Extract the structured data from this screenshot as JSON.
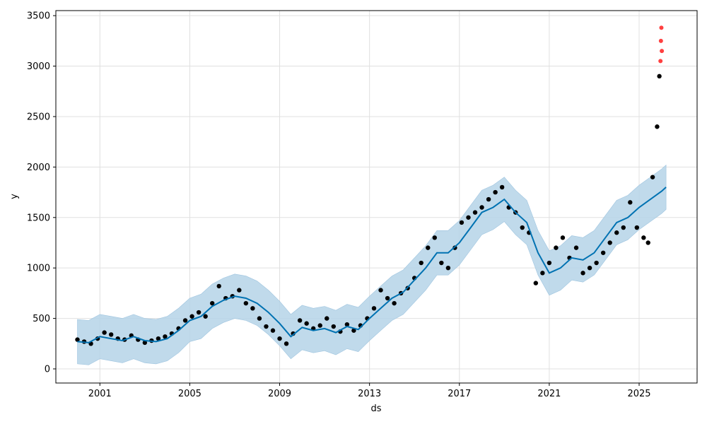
{
  "chart_data": {
    "type": "scatter",
    "xlabel": "ds",
    "ylabel": "y",
    "x_ticks": [
      "2001",
      "2005",
      "2009",
      "2013",
      "2017",
      "2021",
      "2025"
    ],
    "y_ticks": [
      "0",
      "500",
      "1000",
      "1500",
      "2000",
      "2500",
      "3000",
      "3500"
    ],
    "xlim": [
      1999.04,
      2027.58
    ],
    "ylim": [
      -140,
      3550
    ],
    "grid": true,
    "colors": {
      "observed": "#000000",
      "anomaly": "#ff0000",
      "forecast": "#0072b2",
      "uncertainty": "#b5d3e8"
    },
    "forecast": {
      "x": [
        2000.0,
        2000.5,
        2001.0,
        2001.5,
        2002.0,
        2002.5,
        2003.0,
        2003.5,
        2004.0,
        2004.5,
        2005.0,
        2005.5,
        2006.0,
        2006.5,
        2007.0,
        2007.5,
        2008.0,
        2008.5,
        2009.0,
        2009.5,
        2010.0,
        2010.5,
        2011.0,
        2011.5,
        2012.0,
        2012.5,
        2013.0,
        2013.5,
        2014.0,
        2014.5,
        2015.0,
        2015.5,
        2016.0,
        2016.5,
        2017.0,
        2017.5,
        2018.0,
        2018.5,
        2019.0,
        2019.5,
        2020.0,
        2020.5,
        2021.0,
        2021.5,
        2022.0,
        2022.5,
        2023.0,
        2023.5,
        2024.0,
        2024.5,
        2025.0,
        2025.5,
        2026.0,
        2026.2
      ],
      "yhat": [
        270,
        260,
        320,
        300,
        280,
        320,
        280,
        270,
        300,
        380,
        480,
        520,
        620,
        680,
        720,
        700,
        650,
        560,
        450,
        320,
        410,
        380,
        400,
        360,
        420,
        390,
        500,
        600,
        700,
        760,
        880,
        1000,
        1150,
        1150,
        1250,
        1400,
        1550,
        1600,
        1680,
        1550,
        1450,
        1150,
        950,
        1000,
        1100,
        1080,
        1150,
        1300,
        1450,
        1500,
        1600,
        1680,
        1760,
        1800
      ],
      "lower": [
        50,
        40,
        100,
        80,
        60,
        100,
        60,
        50,
        80,
        160,
        270,
        300,
        400,
        460,
        500,
        480,
        430,
        340,
        230,
        100,
        190,
        160,
        180,
        140,
        200,
        170,
        280,
        380,
        480,
        540,
        660,
        780,
        930,
        930,
        1030,
        1180,
        1330,
        1380,
        1460,
        1330,
        1230,
        930,
        730,
        780,
        880,
        860,
        930,
        1080,
        1230,
        1280,
        1380,
        1460,
        1540,
        1580
      ],
      "upper": [
        490,
        480,
        540,
        520,
        500,
        540,
        500,
        490,
        520,
        600,
        700,
        740,
        840,
        900,
        940,
        920,
        870,
        780,
        670,
        540,
        630,
        600,
        620,
        580,
        640,
        610,
        720,
        820,
        920,
        980,
        1100,
        1220,
        1370,
        1370,
        1470,
        1620,
        1770,
        1820,
        1900,
        1770,
        1670,
        1370,
        1170,
        1220,
        1320,
        1300,
        1370,
        1520,
        1670,
        1720,
        1820,
        1900,
        1980,
        2020
      ]
    },
    "observed": {
      "x": [
        2000.0,
        2000.3,
        2000.6,
        2000.9,
        2001.2,
        2001.5,
        2001.8,
        2002.1,
        2002.4,
        2002.7,
        2003.0,
        2003.3,
        2003.6,
        2003.9,
        2004.2,
        2004.5,
        2004.8,
        2005.1,
        2005.4,
        2005.7,
        2006.0,
        2006.3,
        2006.6,
        2006.9,
        2007.2,
        2007.5,
        2007.8,
        2008.1,
        2008.4,
        2008.7,
        2009.0,
        2009.3,
        2009.6,
        2009.9,
        2010.2,
        2010.5,
        2010.8,
        2011.1,
        2011.4,
        2011.7,
        2012.0,
        2012.3,
        2012.6,
        2012.9,
        2013.2,
        2013.5,
        2013.8,
        2014.1,
        2014.4,
        2014.7,
        2015.0,
        2015.3,
        2015.6,
        2015.9,
        2016.2,
        2016.5,
        2016.8,
        2017.1,
        2017.4,
        2017.7,
        2018.0,
        2018.3,
        2018.6,
        2018.9,
        2019.2,
        2019.5,
        2019.8,
        2020.1,
        2020.4,
        2020.7,
        2021.0,
        2021.3,
        2021.6,
        2021.9,
        2022.2,
        2022.5,
        2022.8,
        2023.1,
        2023.4,
        2023.7,
        2024.0,
        2024.3,
        2024.6,
        2024.9,
        2025.2,
        2025.4,
        2025.6,
        2025.8,
        2025.9
      ],
      "y": [
        290,
        270,
        250,
        300,
        360,
        340,
        300,
        290,
        330,
        290,
        260,
        280,
        300,
        320,
        350,
        400,
        480,
        520,
        560,
        520,
        650,
        820,
        700,
        720,
        780,
        650,
        600,
        500,
        420,
        380,
        300,
        250,
        350,
        480,
        450,
        400,
        430,
        500,
        420,
        370,
        440,
        380,
        430,
        500,
        600,
        780,
        700,
        650,
        750,
        800,
        900,
        1050,
        1200,
        1300,
        1050,
        1000,
        1200,
        1450,
        1500,
        1550,
        1600,
        1680,
        1750,
        1800,
        1600,
        1550,
        1400,
        1350,
        850,
        950,
        1050,
        1200,
        1300,
        1100,
        1200,
        950,
        1000,
        1050,
        1150,
        1250,
        1350,
        1400,
        1650,
        1400,
        1300,
        1250,
        1900,
        2400,
        2900
      ]
    },
    "anomalies": {
      "x": [
        2025.95,
        2025.97,
        2025.99,
        2026.01
      ],
      "y": [
        3050,
        3250,
        3380,
        3150
      ]
    }
  }
}
